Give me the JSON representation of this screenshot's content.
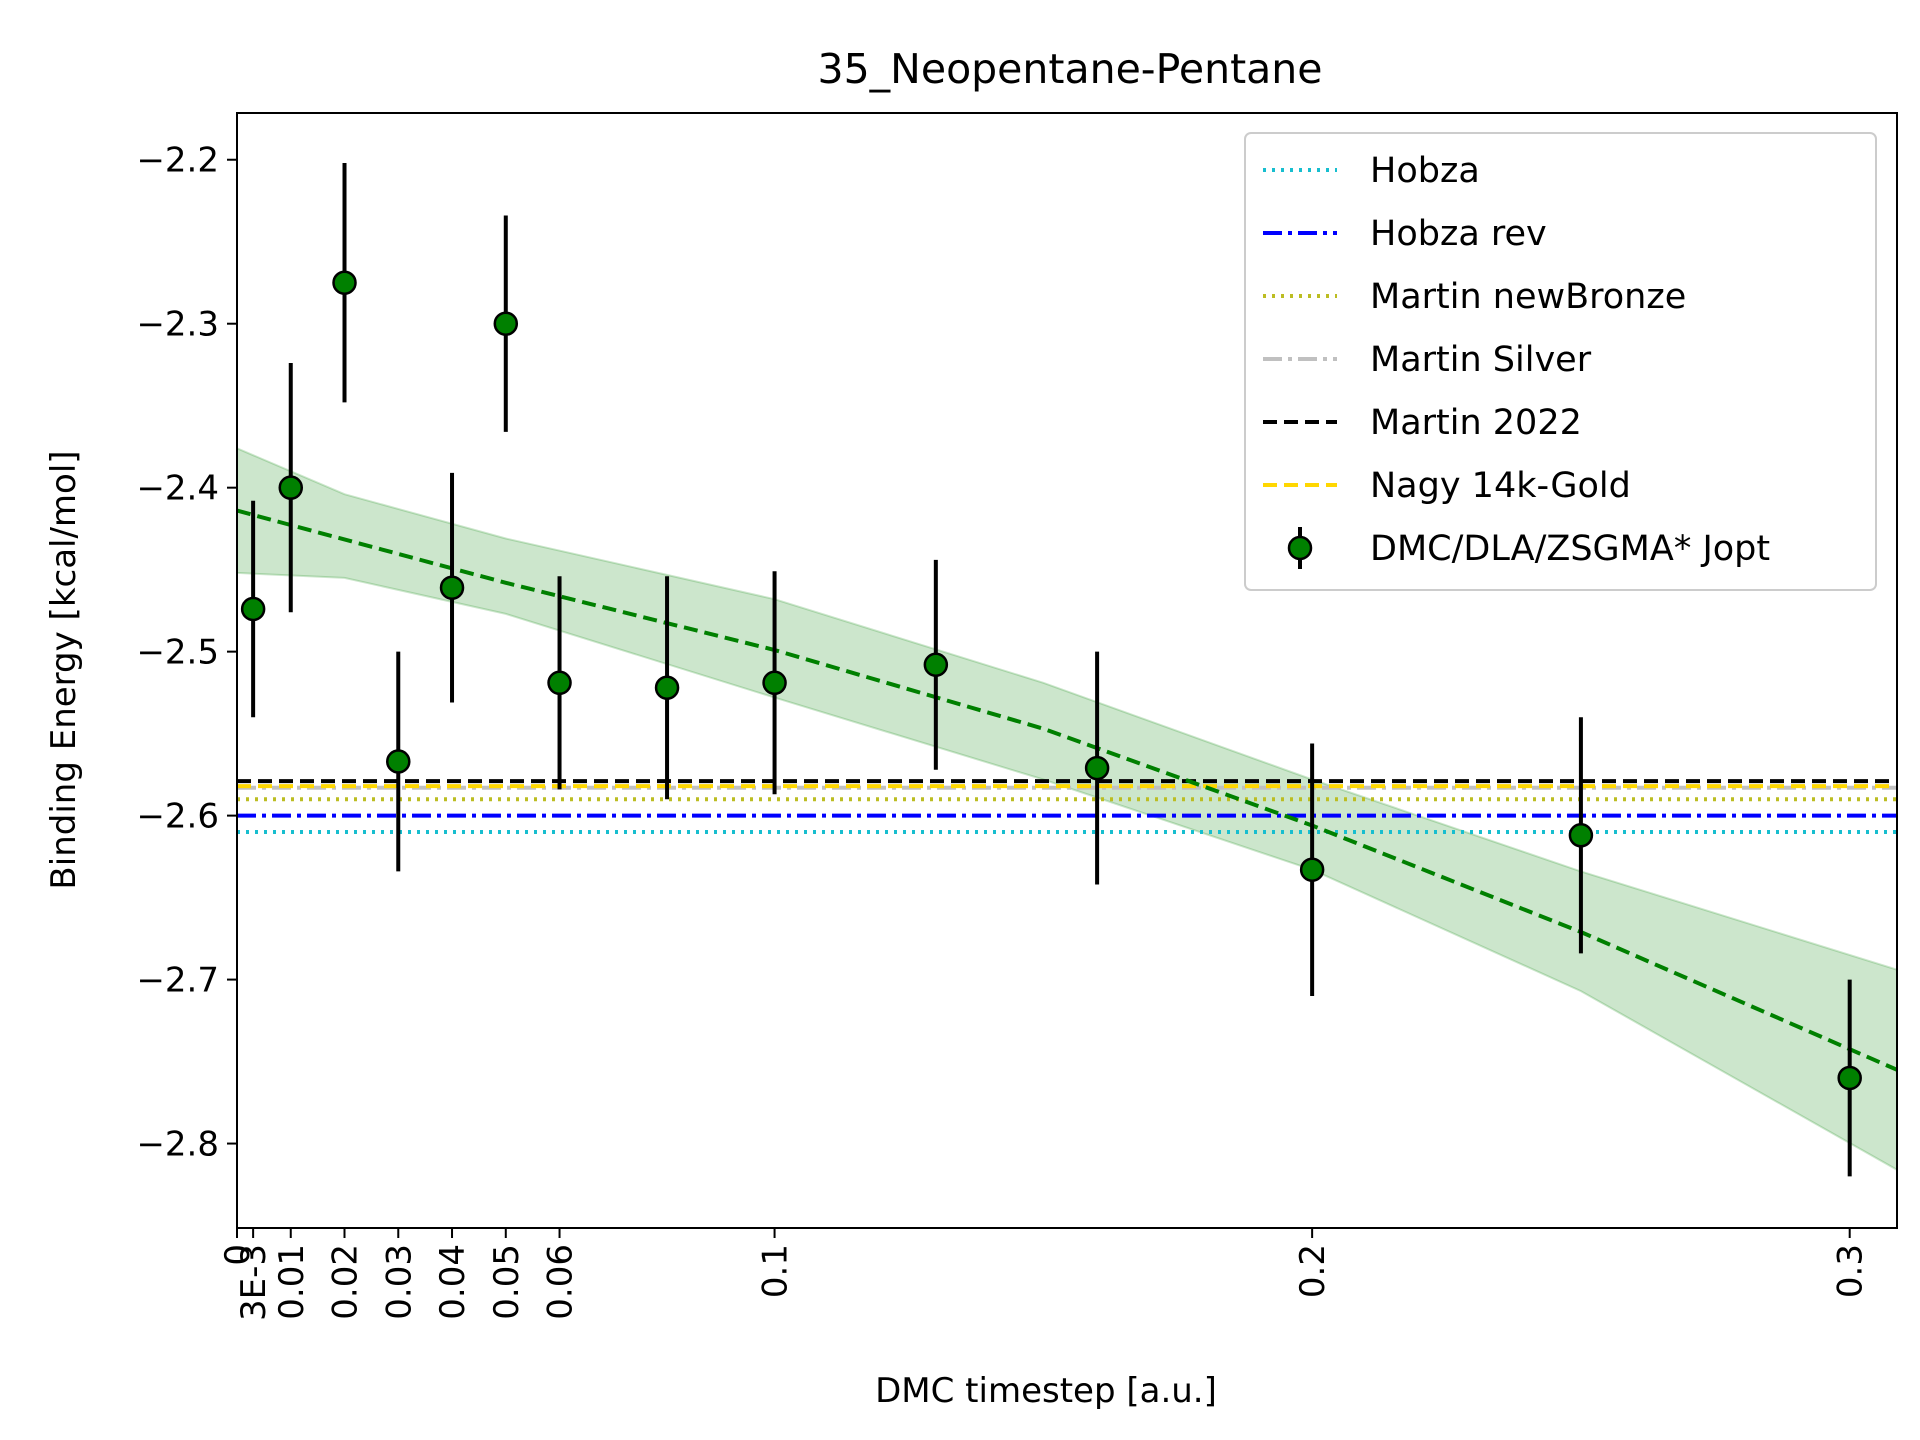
{
  "chart_data": {
    "type": "scatter",
    "title": "35_Neopentane-Pentane",
    "xlabel": "DMC timestep [a.u.]",
    "ylabel": "Binding Energy [kcal/mol]",
    "xlim": [
      0,
      0.3088
    ],
    "ylim": [
      -2.8515,
      -2.1715
    ],
    "xticks": [
      {
        "value": 0,
        "label": "0"
      },
      {
        "value": 0.003,
        "label": "3E-3"
      },
      {
        "value": 0.01,
        "label": "0.01"
      },
      {
        "value": 0.02,
        "label": "0.02"
      },
      {
        "value": 0.03,
        "label": "0.03"
      },
      {
        "value": 0.04,
        "label": "0.04"
      },
      {
        "value": 0.05,
        "label": "0.05"
      },
      {
        "value": 0.06,
        "label": "0.06"
      },
      {
        "value": 0.1,
        "label": "0.1"
      },
      {
        "value": 0.2,
        "label": "0.2"
      },
      {
        "value": 0.3,
        "label": "0.3"
      }
    ],
    "yticks": [
      {
        "value": -2.2,
        "label": "−2.2"
      },
      {
        "value": -2.3,
        "label": "−2.3"
      },
      {
        "value": -2.4,
        "label": "−2.4"
      },
      {
        "value": -2.5,
        "label": "−2.5"
      },
      {
        "value": -2.6,
        "label": "−2.6"
      },
      {
        "value": -2.7,
        "label": "−2.7"
      },
      {
        "value": -2.8,
        "label": "−2.8"
      }
    ],
    "grid": false,
    "legend_position": "top-right",
    "reference_lines": [
      {
        "name": "Hobza",
        "y": -2.61,
        "color": "#17becf",
        "style": "dotted"
      },
      {
        "name": "Hobza rev",
        "y": -2.6,
        "color": "#0000ff",
        "style": "dashdot"
      },
      {
        "name": "Martin newBronze",
        "y": -2.59,
        "color": "#bcbd22",
        "style": "dotted"
      },
      {
        "name": "Martin Silver",
        "y": -2.583,
        "color": "#c0c0c0",
        "style": "dashdot"
      },
      {
        "name": "Martin 2022",
        "y": -2.579,
        "color": "#000000",
        "style": "dashed"
      },
      {
        "name": "Nagy 14k-Gold",
        "y": -2.582,
        "color": "#ffd700",
        "style": "dashed"
      }
    ],
    "series": [
      {
        "name": "DMC/DLA/ZSGMA* Jopt",
        "color": "#008000",
        "points": [
          {
            "x": 0.003,
            "y": -2.474,
            "err": 0.066
          },
          {
            "x": 0.01,
            "y": -2.4,
            "err": 0.076
          },
          {
            "x": 0.02,
            "y": -2.275,
            "err": 0.073
          },
          {
            "x": 0.03,
            "y": -2.567,
            "err": 0.067
          },
          {
            "x": 0.04,
            "y": -2.461,
            "err": 0.07
          },
          {
            "x": 0.05,
            "y": -2.3,
            "err": 0.066
          },
          {
            "x": 0.06,
            "y": -2.519,
            "err": 0.065
          },
          {
            "x": 0.08,
            "y": -2.522,
            "err": 0.068
          },
          {
            "x": 0.1,
            "y": -2.519,
            "err": 0.068
          },
          {
            "x": 0.13,
            "y": -2.508,
            "err": 0.064
          },
          {
            "x": 0.16,
            "y": -2.571,
            "err": 0.071
          },
          {
            "x": 0.2,
            "y": -2.633,
            "err": 0.077
          },
          {
            "x": 0.25,
            "y": -2.612,
            "err": 0.072
          },
          {
            "x": 0.3,
            "y": -2.76,
            "err": 0.06
          }
        ]
      }
    ],
    "fit": {
      "color": "#008000",
      "style": "dashed",
      "line": [
        {
          "x": 0,
          "y": -2.414
        },
        {
          "x": 0.05,
          "y": -2.458
        },
        {
          "x": 0.1,
          "y": -2.499
        },
        {
          "x": 0.15,
          "y": -2.547
        },
        {
          "x": 0.2,
          "y": -2.606
        },
        {
          "x": 0.25,
          "y": -2.671
        },
        {
          "x": 0.3088,
          "y": -2.755
        }
      ],
      "band_upper": [
        {
          "x": 0,
          "y": -2.376
        },
        {
          "x": 0.02,
          "y": -2.404
        },
        {
          "x": 0.05,
          "y": -2.431
        },
        {
          "x": 0.1,
          "y": -2.468
        },
        {
          "x": 0.15,
          "y": -2.519
        },
        {
          "x": 0.2,
          "y": -2.578
        },
        {
          "x": 0.25,
          "y": -2.634
        },
        {
          "x": 0.3088,
          "y": -2.694
        }
      ],
      "band_lower": [
        {
          "x": 0,
          "y": -2.452
        },
        {
          "x": 0.02,
          "y": -2.455
        },
        {
          "x": 0.05,
          "y": -2.477
        },
        {
          "x": 0.1,
          "y": -2.528
        },
        {
          "x": 0.15,
          "y": -2.578
        },
        {
          "x": 0.2,
          "y": -2.633
        },
        {
          "x": 0.25,
          "y": -2.707
        },
        {
          "x": 0.3088,
          "y": -2.816
        }
      ]
    }
  }
}
